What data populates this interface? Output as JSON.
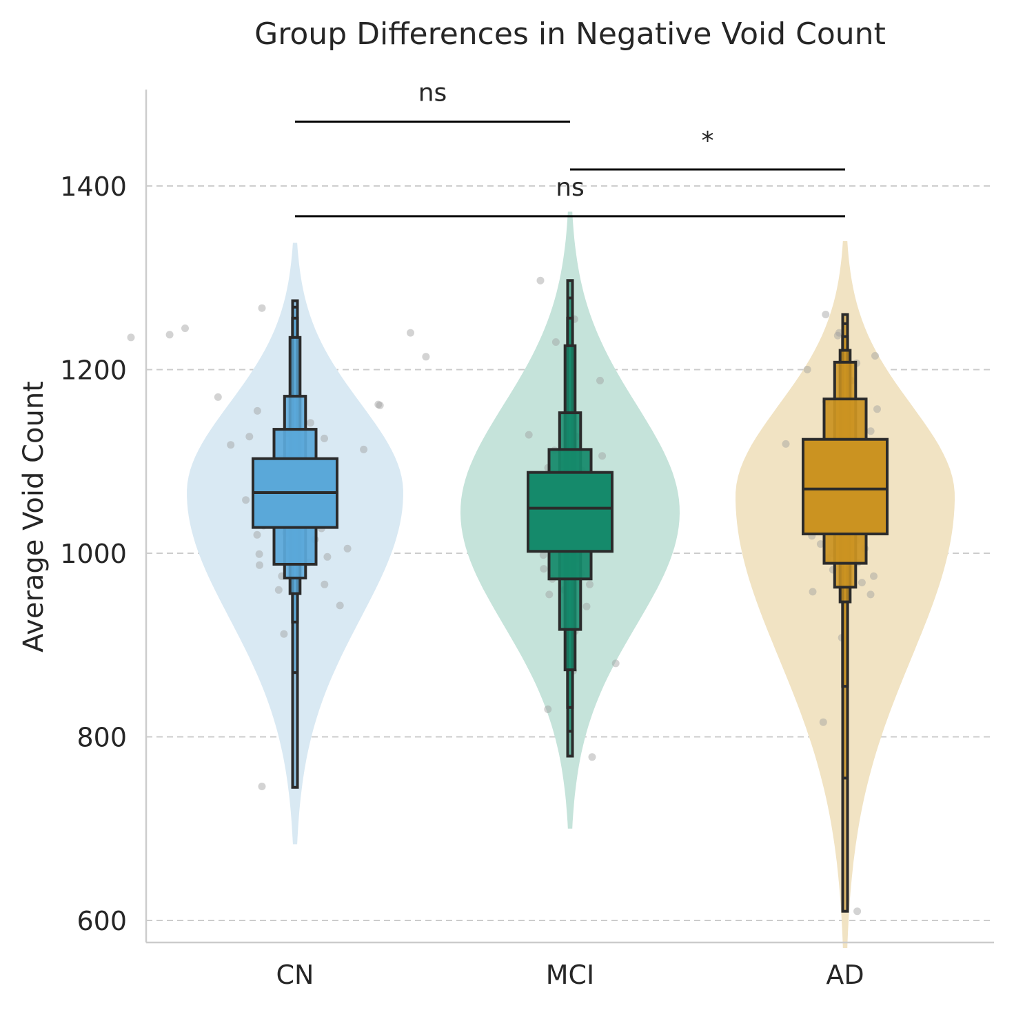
{
  "chart_data": {
    "type": "violin",
    "title": "Group Differences in Negative Void Count",
    "xlabel": "",
    "ylabel": "Average Void Count",
    "ylim": [
      576,
      1505
    ],
    "yticks": [
      600,
      800,
      1000,
      1200,
      1400
    ],
    "grid": "y-dashed",
    "categories": [
      "CN",
      "MCI",
      "AD"
    ],
    "colors": {
      "CN": {
        "violin": "#d9e9f3",
        "box": "#5aa8d9"
      },
      "MCI": {
        "violin": "#c5e3da",
        "box": "#158a6b"
      },
      "AD": {
        "violin": "#f1e3c3",
        "box": "#cb9321"
      }
    },
    "groups": [
      {
        "name": "CN",
        "median": 1066,
        "violin_extent": [
          683,
          1338
        ],
        "violin_peak": 1066,
        "violin_max_halfwidth": 157,
        "boxen_levels": [
          [
            1028,
            1103,
            1.0
          ],
          [
            988,
            1135,
            0.5
          ],
          [
            973,
            1171,
            0.25
          ],
          [
            956,
            1235,
            0.12
          ],
          [
            925,
            1256,
            0.06
          ],
          [
            870,
            1268,
            0.035
          ],
          [
            745,
            1275,
            0.02
          ]
        ],
        "points": [
          [
            1267,
            1040
          ],
          [
            1238,
            1235
          ],
          [
            1240,
            1235
          ],
          [
            1245,
            1235
          ],
          [
            1214,
            1235
          ],
          [
            1235,
            1240
          ],
          [
            1161,
            1145
          ],
          [
            1170,
            1135
          ],
          [
            1162,
            1120
          ],
          [
            1155,
            1100
          ],
          [
            1142,
            1095
          ],
          [
            1130,
            1080
          ],
          [
            1131,
            1040
          ],
          [
            1127,
            1060
          ],
          [
            1125,
            1070
          ],
          [
            1118,
            1110
          ],
          [
            1113,
            1105
          ],
          [
            1106,
            1050
          ],
          [
            1103,
            1060
          ],
          [
            1096,
            1080
          ],
          [
            1091,
            1070
          ],
          [
            1087,
            1090
          ],
          [
            1086,
            1040
          ],
          [
            1083,
            1065
          ],
          [
            1081,
            1050
          ],
          [
            1078,
            1080
          ],
          [
            1075,
            1030
          ],
          [
            1070,
            1020
          ],
          [
            1067,
            1055
          ],
          [
            1063,
            1060
          ],
          [
            1060,
            1045
          ],
          [
            1058,
            1075
          ],
          [
            1055,
            1040
          ],
          [
            1053,
            1065
          ],
          [
            1049,
            1020
          ],
          [
            1047,
            1025
          ],
          [
            1045,
            1050
          ],
          [
            1040,
            1070
          ],
          [
            1037,
            1075
          ],
          [
            1035,
            1050
          ],
          [
            1033,
            1030
          ],
          [
            1030,
            1065
          ],
          [
            1027,
            1040
          ],
          [
            1022,
            1055
          ],
          [
            1020,
            1020
          ],
          [
            1015,
            1035
          ],
          [
            1010,
            1045
          ],
          [
            1005,
            1010
          ],
          [
            1002,
            1030
          ],
          [
            999,
            1065
          ],
          [
            996,
            1055
          ],
          [
            990,
            1015
          ],
          [
            987,
            1030
          ],
          [
            982,
            1060
          ],
          [
            975,
            1040
          ],
          [
            970,
            1080
          ],
          [
            966,
            1080
          ],
          [
            960,
            1030
          ],
          [
            943,
            1080
          ],
          [
            912,
            1045
          ],
          [
            746,
            1040
          ]
        ]
      },
      {
        "name": "MCI",
        "median": 1049,
        "violin_extent": [
          700,
          1372
        ],
        "violin_peak": 1045,
        "violin_max_halfwidth": 159,
        "boxen_levels": [
          [
            1002,
            1088,
            1.0
          ],
          [
            972,
            1113,
            0.5
          ],
          [
            917,
            1153,
            0.25
          ],
          [
            873,
            1226,
            0.12
          ],
          [
            832,
            1256,
            0.06
          ],
          [
            806,
            1278,
            0.035
          ],
          [
            779,
            1297,
            0.02
          ]
        ],
        "points": [
          [
            1297,
            1045
          ],
          [
            1255,
            1045
          ],
          [
            1230,
            1045
          ],
          [
            1188,
            1030
          ],
          [
            1158,
            1045
          ],
          [
            1129,
            1060
          ],
          [
            1127,
            1030
          ],
          [
            1112,
            1045
          ],
          [
            1106,
            1045
          ],
          [
            1097,
            1055
          ],
          [
            1093,
            1040
          ],
          [
            1090,
            1050
          ],
          [
            1085,
            1035
          ],
          [
            1080,
            1040
          ],
          [
            1075,
            1060
          ],
          [
            1072,
            1045
          ],
          [
            1068,
            1055
          ],
          [
            1064,
            1040
          ],
          [
            1061,
            1030
          ],
          [
            1058,
            1050
          ],
          [
            1055,
            1035
          ],
          [
            1052,
            1060
          ],
          [
            1049,
            1045
          ],
          [
            1046,
            1040
          ],
          [
            1043,
            1025
          ],
          [
            1040,
            1055
          ],
          [
            1037,
            1045
          ],
          [
            1033,
            1035
          ],
          [
            1030,
            1050
          ],
          [
            1026,
            1045
          ],
          [
            1022,
            1060
          ],
          [
            1018,
            1045
          ],
          [
            1014,
            1040
          ],
          [
            1010,
            1055
          ],
          [
            1006,
            1050
          ],
          [
            1002,
            1045
          ],
          [
            998,
            1030
          ],
          [
            994,
            1060
          ],
          [
            989,
            1045
          ],
          [
            983,
            1035
          ],
          [
            978,
            1040
          ],
          [
            972,
            1045
          ],
          [
            966,
            1030
          ],
          [
            960,
            1050
          ],
          [
            955,
            1045
          ],
          [
            942,
            1040
          ],
          [
            915,
            1060
          ],
          [
            880,
            1020
          ],
          [
            872,
            1035
          ],
          [
            830,
            1045
          ],
          [
            778,
            1040
          ]
        ]
      },
      {
        "name": "AD",
        "median": 1070,
        "violin_extent": [
          570,
          1340
        ],
        "violin_peak": 1062,
        "violin_max_halfwidth": 159,
        "boxen_levels": [
          [
            1021,
            1124,
            1.0
          ],
          [
            989,
            1168,
            0.5
          ],
          [
            963,
            1208,
            0.25
          ],
          [
            947,
            1221,
            0.12
          ],
          [
            855,
            1236,
            0.06
          ],
          [
            755,
            1250,
            0.035
          ],
          [
            610,
            1260,
            0.02
          ]
        ],
        "points": [
          [
            1260,
            1060
          ],
          [
            1240,
            1060
          ],
          [
            1237,
            1055
          ],
          [
            1215,
            1030
          ],
          [
            1207,
            1060
          ],
          [
            1200,
            1055
          ],
          [
            1188,
            1030
          ],
          [
            1165,
            1050
          ],
          [
            1157,
            1045
          ],
          [
            1152,
            1055
          ],
          [
            1140,
            1070
          ],
          [
            1133,
            1030
          ],
          [
            1125,
            1040
          ],
          [
            1119,
            1080
          ],
          [
            1115,
            1050
          ],
          [
            1110,
            1060
          ],
          [
            1106,
            1040
          ],
          [
            1102,
            1065
          ],
          [
            1096,
            1045
          ],
          [
            1092,
            1075
          ],
          [
            1088,
            1055
          ],
          [
            1085,
            1035
          ],
          [
            1081,
            1060
          ],
          [
            1077,
            1050
          ],
          [
            1073,
            1065
          ],
          [
            1070,
            1040
          ],
          [
            1066,
            1055
          ],
          [
            1063,
            1070
          ],
          [
            1060,
            1045
          ],
          [
            1056,
            1060
          ],
          [
            1052,
            1050
          ],
          [
            1048,
            1040
          ],
          [
            1045,
            1075
          ],
          [
            1041,
            1055
          ],
          [
            1038,
            1045
          ],
          [
            1034,
            1060
          ],
          [
            1030,
            1035
          ],
          [
            1027,
            1050
          ],
          [
            1023,
            1065
          ],
          [
            1019,
            1045
          ],
          [
            1014,
            1040
          ],
          [
            1010,
            1055
          ],
          [
            1005,
            1030
          ],
          [
            1000,
            1060
          ],
          [
            995,
            1050
          ],
          [
            990,
            1045
          ],
          [
            982,
            1035
          ],
          [
            975,
            1045
          ],
          [
            968,
            1055
          ],
          [
            958,
            1060
          ],
          [
            955,
            1045
          ],
          [
            908,
            1040
          ],
          [
            816,
            1050
          ],
          [
            610,
            1040
          ]
        ]
      }
    ],
    "significance": [
      {
        "pair": [
          "CN",
          "MCI"
        ],
        "label": "ns",
        "level": 1470
      },
      {
        "pair": [
          "MCI",
          "AD"
        ],
        "label": "*",
        "level": 1418
      },
      {
        "pair": [
          "CN",
          "AD"
        ],
        "label": "ns",
        "level": 1367
      }
    ]
  }
}
